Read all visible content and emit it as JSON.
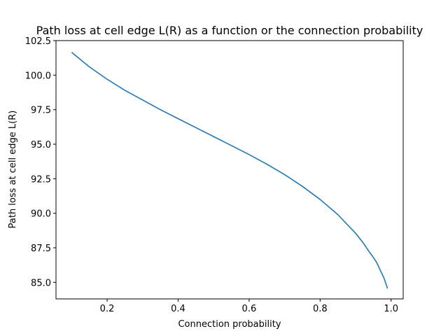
{
  "chart_data": {
    "type": "line",
    "title": "Path loss at cell edge L(R) as a function or the connection probability",
    "xlabel": "Connection probability",
    "ylabel": "Path loss at cell edge L(R)",
    "xlim": [
      0.056,
      1.034
    ],
    "ylim": [
      83.8,
      102.5
    ],
    "xticks": [
      0.2,
      0.4,
      0.6,
      0.8,
      1.0
    ],
    "xtick_labels": [
      "0.2",
      "0.4",
      "0.6",
      "0.8",
      "1.0"
    ],
    "yticks": [
      85.0,
      87.5,
      90.0,
      92.5,
      95.0,
      97.5,
      100.0,
      102.5
    ],
    "ytick_labels": [
      "85.0",
      "87.5",
      "90.0",
      "92.5",
      "95.0",
      "97.5",
      "100.0",
      "102.5"
    ],
    "grid": false,
    "series": [
      {
        "color": "#1f77b4",
        "x": [
          0.1,
          0.15,
          0.2,
          0.25,
          0.3,
          0.35,
          0.4,
          0.45,
          0.5,
          0.55,
          0.6,
          0.65,
          0.7,
          0.75,
          0.8,
          0.85,
          0.9,
          0.92,
          0.94,
          0.95,
          0.96,
          0.97,
          0.98,
          0.99
        ],
        "y": [
          101.65,
          100.6,
          99.7,
          98.9,
          98.2,
          97.5,
          96.85,
          96.2,
          95.55,
          94.9,
          94.25,
          93.55,
          92.8,
          91.95,
          91.0,
          89.9,
          88.55,
          87.9,
          87.15,
          86.8,
          86.4,
          85.85,
          85.3,
          84.55
        ]
      }
    ]
  }
}
